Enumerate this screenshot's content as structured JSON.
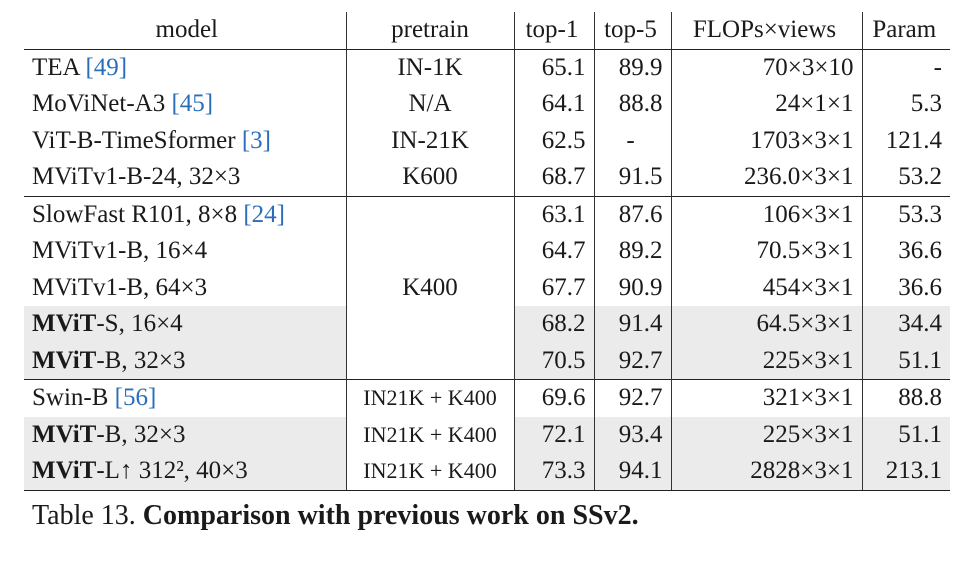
{
  "headers": [
    "model",
    "pretrain",
    "top-1",
    "top-5",
    "FLOPs×views",
    "Param"
  ],
  "rows": [
    {
      "model": "TEA ",
      "ref": "[49]",
      "model_bold": "",
      "suffix": "",
      "pretrain": "IN-1K",
      "top1": "65.1",
      "top5": "89.9",
      "flops": "70×3×10",
      "param": "-",
      "group_start": true,
      "shade": false
    },
    {
      "model": "MoViNet-A3 ",
      "ref": "[45]",
      "model_bold": "",
      "suffix": "",
      "pretrain": "N/A",
      "top1": "64.1",
      "top5": "88.8",
      "flops": "24×1×1",
      "param": "5.3",
      "group_start": false,
      "shade": false
    },
    {
      "model": "ViT-B-TimeSformer ",
      "ref": "[3]",
      "model_bold": "",
      "suffix": "",
      "pretrain": "IN-21K",
      "top1": "62.5",
      "top5": "-",
      "flops": "1703×3×1",
      "param": "121.4",
      "group_start": false,
      "shade": false
    },
    {
      "model": "MViTv1-B-24, 32×3",
      "ref": "",
      "model_bold": "",
      "suffix": "",
      "pretrain": "K600",
      "top1": "68.7",
      "top5": "91.5",
      "flops": "236.0×3×1",
      "param": "53.2",
      "group_start": false,
      "shade": false
    },
    {
      "model": "SlowFast R101, 8×8 ",
      "ref": "[24]",
      "model_bold": "",
      "suffix": "",
      "pretrain": "",
      "top1": "63.1",
      "top5": "87.6",
      "flops": "106×3×1",
      "param": "53.3",
      "group_start": true,
      "shade": false
    },
    {
      "model": "MViTv1-B, 16×4",
      "ref": "",
      "model_bold": "",
      "suffix": "",
      "pretrain": "",
      "top1": "64.7",
      "top5": "89.2",
      "flops": "70.5×3×1",
      "param": "36.6",
      "group_start": false,
      "shade": false
    },
    {
      "model": "MViTv1-B, 64×3",
      "ref": "",
      "model_bold": "",
      "suffix": "",
      "pretrain": "K400",
      "top1": "67.7",
      "top5": "90.9",
      "flops": "454×3×1",
      "param": "36.6",
      "group_start": false,
      "shade": false
    },
    {
      "model": "",
      "ref": "",
      "model_bold": "MViT",
      "suffix": "-S, 16×4",
      "pretrain": "",
      "top1": "68.2",
      "top5": "91.4",
      "flops": "64.5×3×1",
      "param": "34.4",
      "group_start": false,
      "shade": true
    },
    {
      "model": "",
      "ref": "",
      "model_bold": "MViT",
      "suffix": "-B, 32×3",
      "pretrain": "",
      "top1": "70.5",
      "top5": "92.7",
      "flops": "225×3×1",
      "param": "51.1",
      "group_start": false,
      "shade": true,
      "bold_scores": true
    },
    {
      "model": "Swin-B ",
      "ref": "[56]",
      "model_bold": "",
      "suffix": "",
      "pretrain": "IN21K + K400",
      "top1": "69.6",
      "top5": "92.7",
      "flops": "321×3×1",
      "param": "88.8",
      "group_start": true,
      "shade": false
    },
    {
      "model": "",
      "ref": "",
      "model_bold": "MViT",
      "suffix": "-B, 32×3",
      "pretrain": "IN21K + K400",
      "top1": "72.1",
      "top5": "93.4",
      "flops": "225×3×1",
      "param": "51.1",
      "group_start": false,
      "shade": true
    },
    {
      "model": "",
      "ref": "",
      "model_bold": "MViT",
      "suffix": "-L↑ 312², 40×3",
      "pretrain": "IN21K + K400",
      "top1": "73.3",
      "top5": "94.1",
      "flops": "2828×3×1",
      "param": "213.1",
      "group_start": false,
      "shade": true,
      "bold_scores": true
    }
  ],
  "caption": {
    "label": "Table 13.",
    "text": "Comparison with previous work on SSv2."
  }
}
